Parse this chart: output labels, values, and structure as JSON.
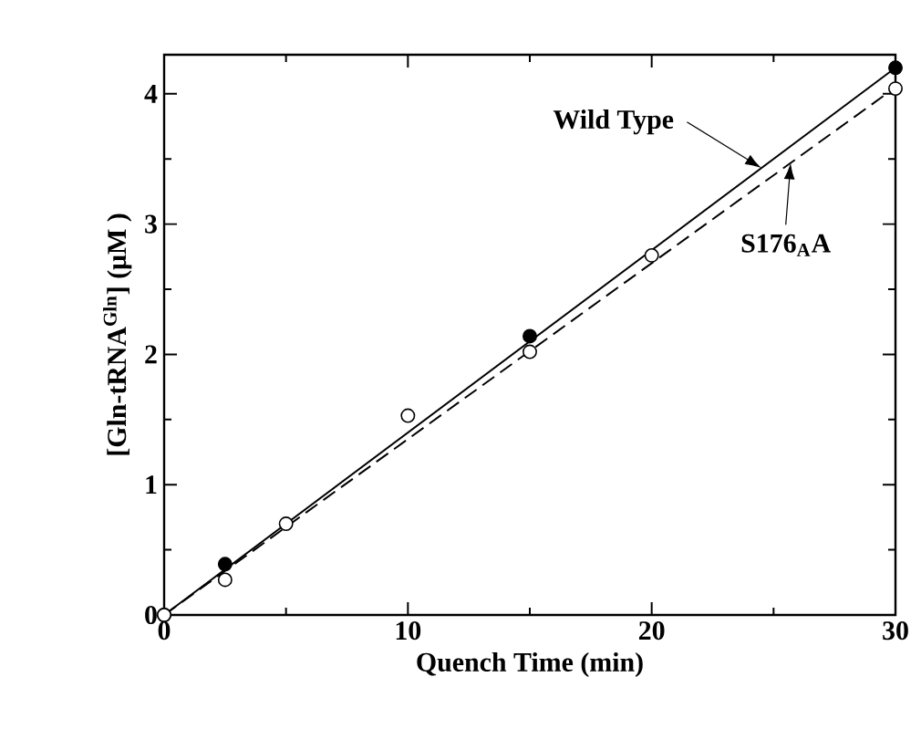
{
  "chart_data": {
    "type": "scatter",
    "xlabel": "Quench Time (min)",
    "ylabel": "[Gln-tRNA$^{Gln}$] (μM )",
    "xlim": [
      0,
      30
    ],
    "ylim": [
      0,
      4.3
    ],
    "xticks": [
      0,
      10,
      20,
      30
    ],
    "yticks": [
      0,
      1,
      2,
      3,
      4
    ],
    "series": [
      {
        "marker": "circle",
        "color": "#000000",
        "x": [
          0,
          2.5,
          15,
          30
        ],
        "values": [
          0,
          0.39,
          2.14,
          4.2
        ]
      },
      {
        "marker": "circle",
        "color": "#ffffff",
        "x": [
          0,
          2.5,
          5,
          10,
          15,
          20,
          30
        ],
        "values": [
          0,
          0.27,
          0.7,
          1.53,
          2.02,
          2.76,
          4.04
        ]
      },
      {
        "type": "line",
        "marker": "none",
        "line_style": "solid",
        "color": "#000000",
        "x": [
          0,
          30
        ],
        "values": [
          0,
          4.2
        ]
      },
      {
        "type": "line",
        "marker": "none",
        "line_style": "dashed",
        "color": "#000000",
        "x": [
          0,
          30
        ],
        "values": [
          0,
          4.05
        ]
      }
    ],
    "annotations": [
      {
        "text": "Wild Type",
        "x": 24.5,
        "y": 3.43
      },
      {
        "text": "S176$_{A}$A",
        "x": 25.7,
        "y": 3.47
      }
    ]
  }
}
